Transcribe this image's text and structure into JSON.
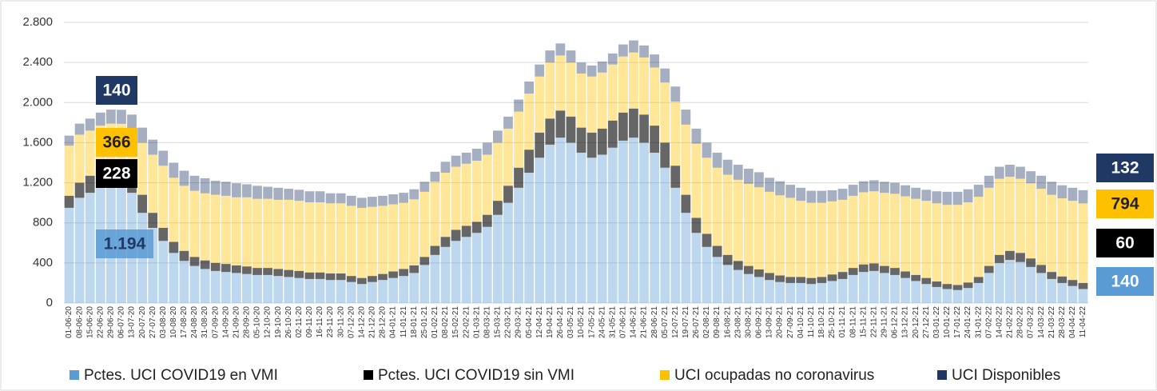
{
  "chart_data": {
    "type": "stacked-bar",
    "categories": [
      "01-06-20",
      "08-06-20",
      "15-06-20",
      "22-06-20",
      "29-06-20",
      "06-07-20",
      "13-07-20",
      "20-07-20",
      "27-07-20",
      "03-08-20",
      "10-08-20",
      "17-08-20",
      "24-08-20",
      "31-08-20",
      "07-09-20",
      "14-09-20",
      "21-09-20",
      "28-09-20",
      "05-10-20",
      "12-10-20",
      "19-10-20",
      "26-10-20",
      "02-11-20",
      "09-11-20",
      "16-11-20",
      "23-11-20",
      "30-11-20",
      "07-12-20",
      "14-12-20",
      "21-12-20",
      "28-12-20",
      "04-01-21",
      "11-01-21",
      "18-01-21",
      "25-01-21",
      "01-02-21",
      "08-02-21",
      "15-02-21",
      "22-02-21",
      "01-03-21",
      "08-03-21",
      "15-03-21",
      "22-03-21",
      "29-03-21",
      "05-04-21",
      "12-04-21",
      "19-04-21",
      "26-04-21",
      "03-05-21",
      "10-05-21",
      "17-05-21",
      "24-05-21",
      "31-05-21",
      "07-06-21",
      "14-06-21",
      "21-06-21",
      "28-06-21",
      "05-07-21",
      "12-07-21",
      "19-07-21",
      "26-07-21",
      "02-08-21",
      "09-08-21",
      "16-08-21",
      "23-08-21",
      "30-08-21",
      "06-09-21",
      "13-09-21",
      "20-09-21",
      "27-09-21",
      "04-10-21",
      "11-10-21",
      "18-10-21",
      "25-10-21",
      "01-11-21",
      "08-11-21",
      "15-11-21",
      "22-11-21",
      "29-11-21",
      "06-12-21",
      "13-12-21",
      "20-12-21",
      "27-12-21",
      "03-01-22",
      "10-01-22",
      "17-01-22",
      "24-01-22",
      "31-01-22",
      "07-02-22",
      "14-02-22",
      "21-02-22",
      "28-02-22",
      "07-03-22",
      "14-03-22",
      "21-03-22",
      "28-03-22",
      "04-04-22",
      "11-04-22"
    ],
    "series": [
      {
        "name": "Pctes. UCI COVID19 en VMI",
        "color": "#5b9bd5",
        "values": [
          950,
          1050,
          1100,
          1150,
          1180,
          1194,
          1100,
          900,
          750,
          620,
          500,
          420,
          370,
          340,
          320,
          310,
          300,
          290,
          280,
          280,
          270,
          260,
          250,
          240,
          240,
          230,
          230,
          210,
          190,
          210,
          230,
          250,
          270,
          300,
          380,
          480,
          560,
          620,
          660,
          700,
          760,
          880,
          1000,
          1150,
          1300,
          1450,
          1580,
          1650,
          1600,
          1500,
          1450,
          1480,
          1550,
          1620,
          1650,
          1600,
          1500,
          1350,
          1150,
          900,
          700,
          560,
          460,
          380,
          330,
          290,
          260,
          230,
          210,
          200,
          200,
          190,
          200,
          220,
          240,
          280,
          310,
          320,
          300,
          280,
          250,
          220,
          190,
          160,
          140,
          130,
          150,
          200,
          300,
          400,
          430,
          410,
          360,
          300,
          240,
          200,
          170,
          140
        ],
        "value_labels": [
          null,
          null,
          null,
          null,
          null,
          "1.194",
          null,
          null,
          null,
          null,
          null,
          null,
          null,
          null,
          null,
          null,
          null,
          null,
          null,
          null,
          null,
          null,
          null,
          null,
          null,
          null,
          null,
          null,
          null,
          null,
          null,
          null,
          null,
          null,
          null,
          null,
          null,
          null,
          null,
          null,
          null,
          null,
          null,
          null,
          null,
          null,
          null,
          null,
          null,
          null,
          null,
          null,
          null,
          null,
          null,
          null,
          null,
          null,
          null,
          null,
          null,
          null,
          null,
          null,
          null,
          null,
          null,
          null,
          null,
          null,
          null,
          null,
          null,
          null,
          null,
          null,
          null,
          null,
          null,
          null,
          null,
          null,
          null,
          null,
          null,
          null,
          null,
          null,
          null,
          null,
          null,
          null,
          null,
          null,
          null,
          null,
          null,
          null
        ]
      },
      {
        "name": "Pctes. UCI COVID19 sin VMI",
        "color": "#000000",
        "values": [
          120,
          150,
          170,
          200,
          220,
          228,
          210,
          180,
          150,
          130,
          110,
          100,
          90,
          85,
          80,
          80,
          75,
          75,
          70,
          70,
          70,
          70,
          70,
          65,
          65,
          65,
          65,
          60,
          60,
          60,
          60,
          65,
          70,
          75,
          80,
          90,
          100,
          110,
          110,
          110,
          120,
          140,
          170,
          200,
          230,
          250,
          260,
          270,
          260,
          250,
          250,
          260,
          270,
          280,
          290,
          280,
          270,
          250,
          220,
          180,
          150,
          130,
          110,
          100,
          90,
          80,
          75,
          70,
          65,
          60,
          60,
          60,
          60,
          65,
          70,
          70,
          75,
          75,
          70,
          70,
          65,
          60,
          60,
          55,
          50,
          50,
          55,
          60,
          70,
          80,
          90,
          90,
          85,
          80,
          70,
          65,
          60,
          60
        ]
      },
      {
        "name": "UCI ocupadas no coronavirus",
        "color": "#ffc000",
        "values": [
          500,
          480,
          450,
          420,
          390,
          366,
          420,
          520,
          580,
          620,
          640,
          650,
          660,
          670,
          680,
          680,
          680,
          690,
          690,
          690,
          690,
          700,
          700,
          700,
          700,
          700,
          700,
          700,
          700,
          690,
          680,
          670,
          660,
          660,
          650,
          640,
          640,
          630,
          620,
          610,
          600,
          580,
          570,
          560,
          560,
          560,
          560,
          550,
          540,
          540,
          560,
          560,
          560,
          560,
          560,
          570,
          580,
          600,
          640,
          700,
          740,
          760,
          780,
          800,
          810,
          820,
          820,
          810,
          800,
          790,
          760,
          750,
          740,
          730,
          720,
          720,
          720,
          720,
          730,
          740,
          750,
          760,
          770,
          780,
          790,
          800,
          800,
          800,
          780,
          760,
          740,
          740,
          750,
          760,
          770,
          780,
          790,
          794
        ]
      },
      {
        "name": "UCI Disponibles",
        "color": "#1f3864",
        "values": [
          100,
          110,
          120,
          130,
          140,
          140,
          150,
          150,
          150,
          150,
          150,
          150,
          150,
          150,
          140,
          140,
          140,
          130,
          130,
          120,
          120,
          110,
          110,
          110,
          110,
          100,
          100,
          100,
          100,
          100,
          100,
          100,
          100,
          100,
          100,
          100,
          110,
          110,
          110,
          120,
          120,
          120,
          120,
          120,
          120,
          120,
          120,
          120,
          120,
          110,
          110,
          110,
          110,
          120,
          120,
          120,
          130,
          140,
          150,
          150,
          150,
          150,
          150,
          150,
          150,
          150,
          150,
          140,
          140,
          130,
          130,
          120,
          120,
          110,
          110,
          110,
          110,
          110,
          110,
          110,
          110,
          110,
          110,
          120,
          130,
          130,
          130,
          120,
          120,
          120,
          120,
          120,
          120,
          130,
          130,
          130,
          130,
          132
        ]
      }
    ],
    "ylim": [
      0,
      2800
    ],
    "yticks": [
      0,
      400,
      800,
      {
        "value": 1200,
        "label": "1.200"
      },
      {
        "value": 1600,
        "label": "1.600"
      },
      {
        "value": 2000,
        "label": "2.000"
      },
      {
        "value": 2400,
        "label": "2.400"
      },
      {
        "value": 2800,
        "label": "2.800"
      }
    ],
    "grid": true
  }
}
